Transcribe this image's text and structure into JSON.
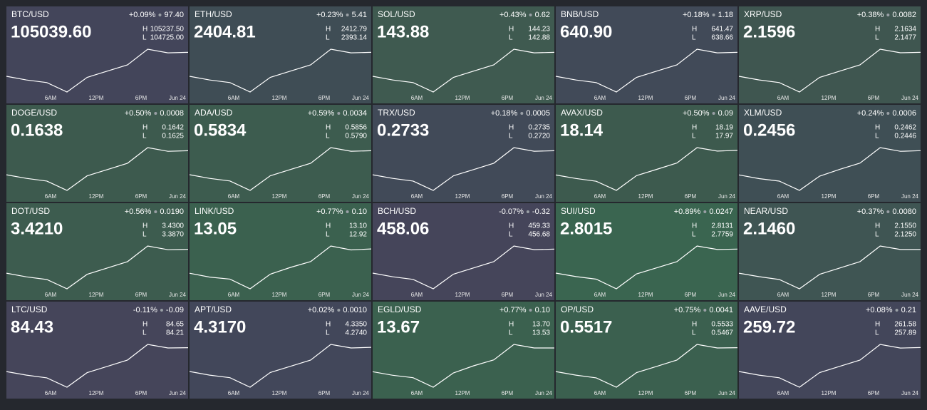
{
  "labels": {
    "high": "H",
    "low": "L"
  },
  "time_labels": [
    "6AM",
    "12PM",
    "6PM",
    "Jun 24"
  ],
  "tiles": [
    {
      "symbol": "BTC/USD",
      "price": "105039.60",
      "change_pct": "+0.09%",
      "change": "97.40",
      "high": "105237.50",
      "low": "104725.00",
      "color": "#43455a",
      "spark": [
        103880,
        103691,
        103556,
        103070,
        103826,
        104150,
        104474,
        105284,
        105095,
        105122
      ]
    },
    {
      "symbol": "ETH/USD",
      "price": "2404.81",
      "change_pct": "+0.23%",
      "change": "5.41",
      "high": "2412.79",
      "low": "2393.14",
      "color": "#3f4d55",
      "spark": [
        2370,
        2364.75,
        2361,
        2347.5,
        2368.5,
        2377.5,
        2386.5,
        2409,
        2403.75,
        2404.5
      ]
    },
    {
      "symbol": "SOL/USD",
      "price": "143.88",
      "change_pct": "+0.43%",
      "change": "0.62",
      "high": "144.23",
      "low": "142.88",
      "color": "#3f5a50",
      "spark": [
        140.8,
        140.31,
        139.96,
        138.7,
        140.66,
        141.5,
        142.34,
        144.44,
        143.95,
        144.02
      ]
    },
    {
      "symbol": "BNB/USD",
      "price": "640.90",
      "change_pct": "+0.18%",
      "change": "1.18",
      "high": "641.47",
      "low": "638.66",
      "color": "#414a58",
      "spark": [
        636.6,
        635.97,
        635.52,
        633.9,
        636.42,
        637.5,
        638.58,
        641.28,
        640.65,
        640.74
      ]
    },
    {
      "symbol": "XRP/USD",
      "price": "2.1596",
      "change_pct": "+0.38%",
      "change": "0.0082",
      "high": "2.1634",
      "low": "2.1477",
      "color": "#3f5650",
      "spark": [
        2.138,
        2.1349,
        2.1326,
        2.1245,
        2.1371,
        2.1425,
        2.1479,
        2.1614,
        2.1583,
        2.1587
      ]
    },
    {
      "symbol": "DOGE/USD",
      "price": "0.1638",
      "change_pct": "+0.50%",
      "change": "0.0008",
      "high": "0.1642",
      "low": "0.1625",
      "color": "#3d5a4e",
      "spark": [
        0.16072,
        0.16024,
        0.1599,
        0.15868,
        0.16058,
        0.1614,
        0.16222,
        0.16426,
        0.16378,
        0.16385
      ]
    },
    {
      "symbol": "ADA/USD",
      "price": "0.5834",
      "change_pct": "+0.59%",
      "change": "0.0034",
      "high": "0.5856",
      "low": "0.5790",
      "color": "#3d5c4f",
      "spark": [
        0.5734,
        0.57193,
        0.57088,
        0.5671,
        0.57298,
        0.5755,
        0.57802,
        0.58432,
        0.58285,
        0.58306
      ]
    },
    {
      "symbol": "TRX/USD",
      "price": "0.2733",
      "change_pct": "+0.18%",
      "change": "0.0005",
      "high": "0.2735",
      "low": "0.2720",
      "color": "#414a58",
      "spark": [
        0.27052,
        0.27008,
        0.26976,
        0.26863,
        0.27039,
        0.27115,
        0.27191,
        0.2738,
        0.27336,
        0.27342
      ]
    },
    {
      "symbol": "AVAX/USD",
      "price": "18.14",
      "change_pct": "+0.50%",
      "change": "0.09",
      "high": "18.19",
      "low": "17.97",
      "color": "#3d5a4e",
      "spark": [
        17.8,
        17.75,
        17.71,
        17.58,
        17.79,
        17.88,
        17.97,
        18.19,
        18.14,
        18.15
      ]
    },
    {
      "symbol": "XLM/USD",
      "price": "0.2456",
      "change_pct": "+0.24%",
      "change": "0.0006",
      "high": "0.2462",
      "low": "0.2446",
      "color": "#3f4f55",
      "spark": [
        0.2414,
        0.2408,
        0.2404,
        0.2389,
        0.2412,
        0.2423,
        0.2433,
        0.2458,
        0.2452,
        0.2453
      ]
    },
    {
      "symbol": "DOT/USD",
      "price": "3.4210",
      "change_pct": "+0.56%",
      "change": "0.0190",
      "high": "3.4300",
      "low": "3.3870",
      "color": "#3d5c4f",
      "spark": [
        3.356,
        3.346,
        3.339,
        3.314,
        3.353,
        3.37,
        3.387,
        3.429,
        3.419,
        3.42
      ]
    },
    {
      "symbol": "LINK/USD",
      "price": "13.05",
      "change_pct": "+0.77%",
      "change": "0.10",
      "high": "13.10",
      "low": "12.92",
      "color": "#3b614f",
      "spark": [
        12.81,
        12.77,
        12.75,
        12.65,
        12.8,
        12.87,
        12.93,
        13.09,
        13.05,
        13.06
      ]
    },
    {
      "symbol": "BCH/USD",
      "price": "458.06",
      "change_pct": "-0.07%",
      "change": "-0.32",
      "high": "459.33",
      "low": "456.68",
      "color": "#45455a",
      "spark": [
        454,
        453.3,
        452.8,
        451,
        453.8,
        455,
        456.2,
        459.2,
        458.5,
        458.6
      ]
    },
    {
      "symbol": "SUI/USD",
      "price": "2.8015",
      "change_pct": "+0.89%",
      "change": "0.0247",
      "high": "2.8131",
      "low": "2.7759",
      "color": "#3a6550",
      "spark": [
        2.748,
        2.74,
        2.734,
        2.712,
        2.746,
        2.76,
        2.774,
        2.81,
        2.802,
        2.803
      ]
    },
    {
      "symbol": "NEAR/USD",
      "price": "2.1460",
      "change_pct": "+0.37%",
      "change": "0.0080",
      "high": "2.1550",
      "low": "2.1250",
      "color": "#3f5553",
      "spark": [
        2.106,
        2.1,
        2.095,
        2.079,
        2.104,
        2.115,
        2.126,
        2.153,
        2.147,
        2.147
      ]
    },
    {
      "symbol": "LTC/USD",
      "price": "84.43",
      "change_pct": "-0.11%",
      "change": "-0.09",
      "high": "84.65",
      "low": "84.21",
      "color": "#45455a",
      "spark": [
        83.56,
        83.43,
        83.33,
        82.99,
        83.52,
        83.75,
        83.98,
        84.55,
        84.42,
        84.43
      ]
    },
    {
      "symbol": "APT/USD",
      "price": "4.3170",
      "change_pct": "+0.02%",
      "change": "0.0010",
      "high": "4.3350",
      "low": "4.2740",
      "color": "#42475a",
      "spark": [
        4.244,
        4.233,
        4.225,
        4.196,
        4.241,
        4.26,
        4.279,
        4.327,
        4.316,
        4.318
      ]
    },
    {
      "symbol": "EGLD/USD",
      "price": "13.67",
      "change_pct": "+0.77%",
      "change": "0.10",
      "high": "13.70",
      "low": "13.53",
      "color": "#3b614f",
      "spark": [
        13.47,
        13.44,
        13.42,
        13.34,
        13.46,
        13.52,
        13.57,
        13.7,
        13.67,
        13.67
      ]
    },
    {
      "symbol": "OP/USD",
      "price": "0.5517",
      "change_pct": "+0.75%",
      "change": "0.0041",
      "high": "0.5533",
      "low": "0.5467",
      "color": "#3b604f",
      "spark": [
        0.5426,
        0.5413,
        0.5403,
        0.5369,
        0.5422,
        0.5445,
        0.5468,
        0.5525,
        0.5512,
        0.5513
      ]
    },
    {
      "symbol": "AAVE/USD",
      "price": "259.72",
      "change_pct": "+0.08%",
      "change": "0.21",
      "high": "261.58",
      "low": "257.89",
      "color": "#43465a",
      "spark": [
        256.6,
        256.15,
        255.82,
        254.65,
        256.47,
        257.25,
        258.03,
        259.98,
        259.53,
        259.59
      ]
    }
  ]
}
